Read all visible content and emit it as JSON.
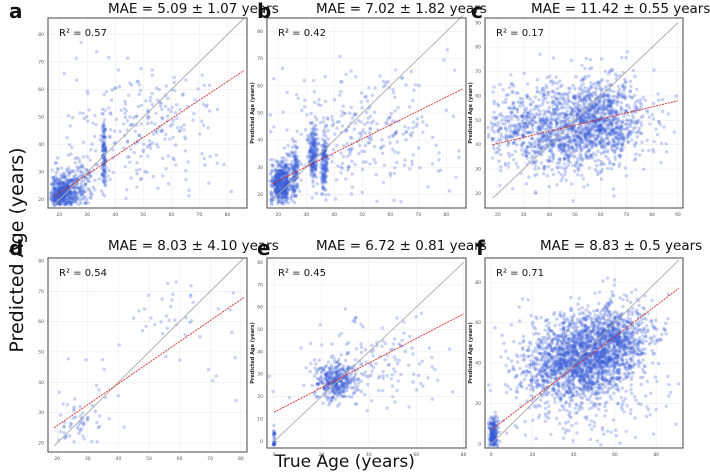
{
  "figure": {
    "ylabel": "Predicted Age (years)",
    "xlabel": "True Age (years)",
    "point_color": "#3a5fd9",
    "identity_line_color": "#aaaaaa",
    "fit_line_color": "#d62728"
  },
  "chart_data": [
    {
      "id": "a",
      "type": "scatter",
      "letter": "a",
      "title": "MAE = 5.09 ± 1.07 years",
      "r2_label": "R² = 0.57",
      "xlim": [
        16,
        87
      ],
      "ylim": [
        17,
        86
      ],
      "xticks": [
        20,
        30,
        40,
        50,
        60,
        70,
        80
      ],
      "yticks": [
        20,
        30,
        40,
        50,
        60,
        70,
        80
      ],
      "ylabel": "",
      "identity_line": [
        [
          18,
          18
        ],
        [
          86,
          86
        ]
      ],
      "fit_line": [
        [
          18,
          21
        ],
        [
          86,
          67
        ]
      ],
      "clusters": [
        {
          "cx": 21,
          "cy": 22,
          "sx": 2.5,
          "sy": 3,
          "n": 450
        },
        {
          "cx": 26,
          "cy": 26,
          "sx": 4,
          "sy": 5,
          "n": 200
        },
        {
          "cx": 36,
          "cy": 36,
          "sx": 0.4,
          "sy": 7,
          "n": 120
        },
        {
          "cx": 50,
          "cy": 45,
          "sx": 14,
          "sy": 11,
          "n": 260
        }
      ]
    },
    {
      "id": "b",
      "type": "scatter",
      "letter": "b",
      "title": "MAE = 7.02 ± 1.82 years",
      "r2_label": "R² = 0.42",
      "xlim": [
        16,
        87
      ],
      "ylim": [
        15,
        85
      ],
      "xticks": [
        20,
        30,
        40,
        50,
        60,
        70,
        80
      ],
      "yticks": [
        20,
        30,
        40,
        50,
        60,
        70,
        80
      ],
      "ylabel": "Predicted Age (years)",
      "identity_line": [
        [
          18,
          18
        ],
        [
          86,
          86
        ]
      ],
      "fit_line": [
        [
          18,
          24
        ],
        [
          86,
          59
        ]
      ],
      "clusters": [
        {
          "cx": 21,
          "cy": 24,
          "sx": 2,
          "sy": 4,
          "n": 500
        },
        {
          "cx": 26,
          "cy": 28,
          "sx": 0.6,
          "sy": 5,
          "n": 120
        },
        {
          "cx": 32.5,
          "cy": 35,
          "sx": 0.8,
          "sy": 5,
          "n": 200
        },
        {
          "cx": 36.5,
          "cy": 32,
          "sx": 0.6,
          "sy": 5,
          "n": 150
        },
        {
          "cx": 50,
          "cy": 42,
          "sx": 15,
          "sy": 12,
          "n": 300
        }
      ]
    },
    {
      "id": "c",
      "type": "scatter",
      "letter": "c",
      "title": "MAE = 11.42 ± 0.55 years",
      "r2_label": "R² = 0.17",
      "xlim": [
        15,
        92
      ],
      "ylim": [
        14,
        92
      ],
      "xticks": [
        20,
        30,
        40,
        50,
        60,
        70,
        80,
        90
      ],
      "yticks": [
        20,
        30,
        40,
        50,
        60,
        70,
        80,
        90
      ],
      "ylabel": "Predicted Age (years)",
      "identity_line": [
        [
          18,
          18
        ],
        [
          90,
          90
        ]
      ],
      "fit_line": [
        [
          18,
          40
        ],
        [
          90,
          58
        ]
      ],
      "clusters": [
        {
          "cx": 45,
          "cy": 46,
          "sx": 16,
          "sy": 9,
          "n": 1400
        },
        {
          "cx": 60,
          "cy": 53,
          "sx": 8,
          "sy": 8,
          "n": 500
        }
      ]
    },
    {
      "id": "d",
      "type": "scatter",
      "letter": "d",
      "title": "MAE = 8.03 ± 4.10 years",
      "r2_label": "R² = 0.54",
      "xlim": [
        17,
        82
      ],
      "ylim": [
        17,
        81
      ],
      "xticks": [
        20,
        30,
        40,
        50,
        60,
        70,
        80
      ],
      "ytick_labels_override": null,
      "yticks": [
        20,
        30,
        40,
        50,
        60,
        70,
        80
      ],
      "ylabel": "",
      "identity_line": [
        [
          19,
          19
        ],
        [
          81,
          81
        ]
      ],
      "fit_line": [
        [
          19,
          25
        ],
        [
          81,
          68
        ]
      ],
      "clusters": [
        {
          "cx": 26,
          "cy": 26,
          "sx": 3,
          "sy": 4,
          "n": 45
        },
        {
          "cx": 33,
          "cy": 36,
          "sx": 6,
          "sy": 10,
          "n": 20
        },
        {
          "cx": 58,
          "cy": 59,
          "sx": 6,
          "sy": 8,
          "n": 30
        },
        {
          "cx": 72,
          "cy": 50,
          "sx": 8,
          "sy": 15,
          "n": 12
        }
      ]
    },
    {
      "id": "e",
      "type": "scatter",
      "letter": "e",
      "title": "MAE = 6.72 ± 0.81 years",
      "r2_label": "R² = 0.45",
      "xlim": [
        -3,
        81
      ],
      "ylim": [
        -3,
        82
      ],
      "xticks": [
        0,
        20,
        40,
        60,
        80
      ],
      "yticks": [
        0,
        10,
        20,
        30,
        40,
        50,
        60,
        70,
        80
      ],
      "ylabel": "Predicted Age (years)",
      "identity_line": [
        [
          0,
          0
        ],
        [
          80,
          80
        ]
      ],
      "fit_line": [
        [
          0,
          13
        ],
        [
          80,
          57
        ]
      ],
      "clusters": [
        {
          "cx": 0,
          "cy": 1,
          "sx": 0.2,
          "sy": 3,
          "n": 40
        },
        {
          "cx": 26,
          "cy": 27,
          "sx": 4,
          "sy": 4,
          "n": 350
        },
        {
          "cx": 40,
          "cy": 35,
          "sx": 15,
          "sy": 10,
          "n": 160
        }
      ]
    },
    {
      "id": "f",
      "type": "scatter",
      "letter": "f",
      "title": "MAE = 8.83 ± 0.5 years",
      "r2_label": "R² = 0.71",
      "xlim": [
        -3,
        93
      ],
      "ylim": [
        -2,
        92
      ],
      "xticks": [
        0,
        20,
        40,
        60,
        80
      ],
      "yticks": [
        0,
        20,
        40,
        60,
        80
      ],
      "ylabel": "Predicted Age (years)",
      "identity_line": [
        [
          0,
          0
        ],
        [
          91,
          91
        ]
      ],
      "fit_line": [
        [
          0,
          7
        ],
        [
          91,
          77
        ]
      ],
      "clusters": [
        {
          "cx": 1,
          "cy": 4,
          "sx": 1,
          "sy": 5,
          "n": 250
        },
        {
          "cx": 40,
          "cy": 40,
          "sx": 13,
          "sy": 10,
          "n": 1500
        },
        {
          "cx": 58,
          "cy": 52,
          "sx": 10,
          "sy": 9,
          "n": 900
        },
        {
          "cx": 45,
          "cy": 25,
          "sx": 22,
          "sy": 18,
          "n": 200
        }
      ]
    }
  ]
}
